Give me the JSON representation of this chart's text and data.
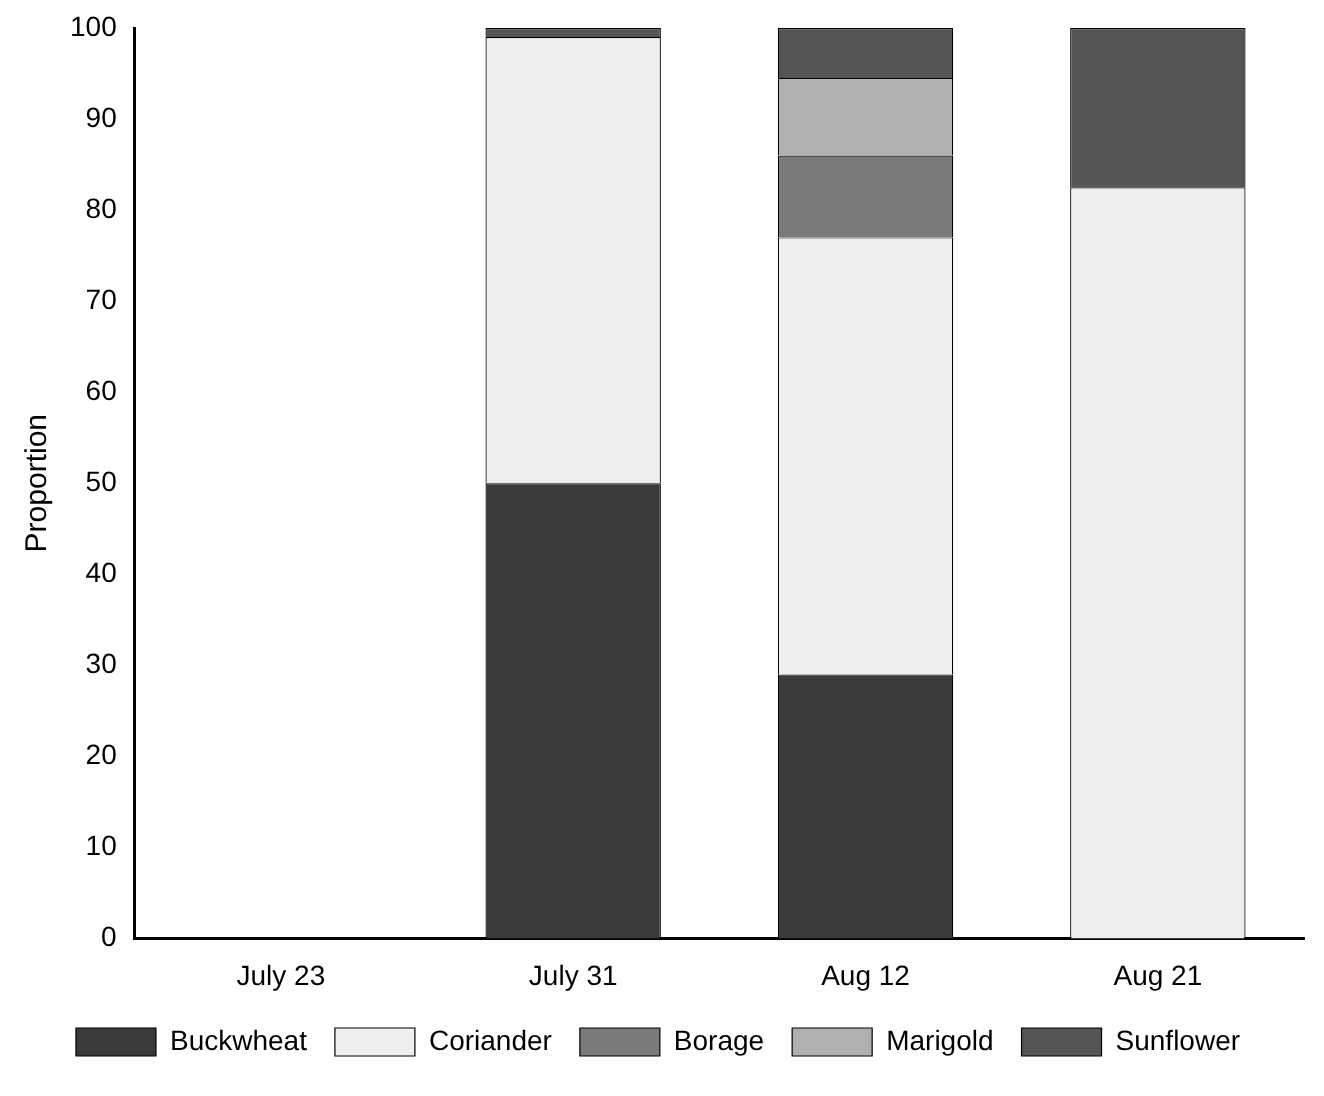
{
  "chart_data": {
    "type": "bar",
    "stacked": true,
    "ylabel": "Proportion",
    "categories": [
      "July 23",
      "July 31",
      "Aug 12",
      "Aug 21"
    ],
    "series": [
      {
        "name": "Buckwheat",
        "color": "#3a3a3a",
        "values": [
          null,
          50,
          29,
          null
        ]
      },
      {
        "name": "Coriander",
        "color": "#eeeeee",
        "values": [
          null,
          49,
          48,
          82.5
        ]
      },
      {
        "name": "Borage",
        "color": "#7a7a7a",
        "values": [
          null,
          null,
          9,
          null
        ]
      },
      {
        "name": "Marigold",
        "color": "#b0b0b0",
        "values": [
          null,
          null,
          8.5,
          null
        ]
      },
      {
        "name": "Sunflower",
        "color": "#555555",
        "values": [
          null,
          1,
          5.5,
          17.5
        ]
      }
    ],
    "ylim": [
      0,
      100
    ],
    "yticks": [
      0,
      10,
      20,
      30,
      40,
      50,
      60,
      70,
      80,
      90,
      100
    ],
    "grid": false,
    "legend": "bottom"
  }
}
